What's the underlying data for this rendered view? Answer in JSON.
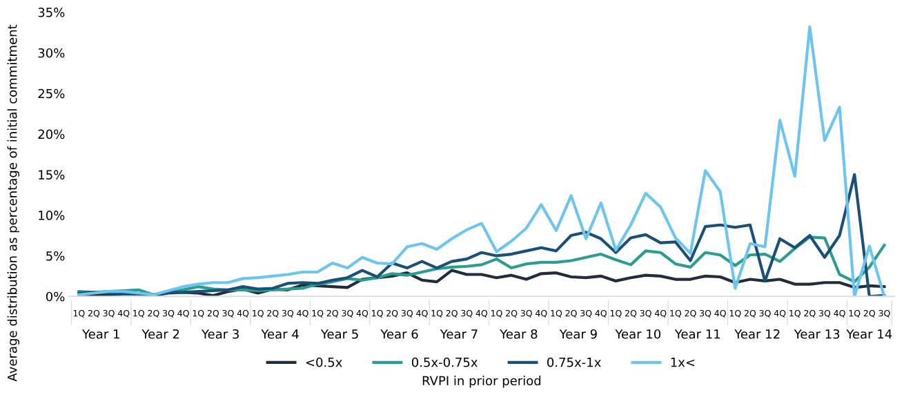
{
  "chart_data": {
    "type": "line",
    "ylabel": "Average distribution as percentage of initial commitment",
    "xlabel": "RVPI in prior period",
    "categories": [
      "1Q",
      "2Q",
      "3Q",
      "4Q",
      "1Q",
      "2Q",
      "3Q",
      "4Q",
      "1Q",
      "2Q",
      "3Q",
      "4Q",
      "1Q",
      "2Q",
      "3Q",
      "4Q",
      "1Q",
      "2Q",
      "3Q",
      "4Q",
      "1Q",
      "2Q",
      "3Q",
      "4Q",
      "1Q",
      "2Q",
      "3Q",
      "4Q",
      "1Q",
      "2Q",
      "3Q",
      "4Q",
      "1Q",
      "2Q",
      "3Q",
      "4Q",
      "1Q",
      "2Q",
      "3Q",
      "4Q",
      "1Q",
      "2Q",
      "3Q",
      "4Q",
      "1Q",
      "2Q",
      "3Q",
      "4Q",
      "1Q",
      "2Q",
      "3Q",
      "4Q",
      "1Q",
      "2Q",
      "3Q"
    ],
    "annotations": [
      "Year 1",
      "Year 2",
      "Year 3",
      "Year 4",
      "Year 5",
      "Year 6",
      "Year 7",
      "Year 8",
      "Year 9",
      "Year 10",
      "Year 11",
      "Year 12",
      "Year 13",
      "Year 14"
    ],
    "series": [
      {
        "name": "<0.5x",
        "color": "#1f2d3d",
        "values": [
          0.0,
          0.2,
          0.2,
          0.3,
          0.3,
          0.1,
          0.4,
          0.5,
          0.4,
          0.1,
          0.6,
          0.9,
          0.4,
          0.9,
          0.8,
          1.4,
          1.3,
          1.2,
          1.1,
          2.1,
          2.3,
          2.5,
          2.9,
          2.0,
          1.8,
          3.2,
          2.7,
          2.7,
          2.3,
          2.6,
          2.1,
          2.8,
          2.9,
          2.4,
          2.3,
          2.5,
          1.9,
          2.3,
          2.6,
          2.5,
          2.1,
          2.1,
          2.5,
          2.4,
          1.7,
          2.1,
          1.9,
          2.1,
          1.5,
          1.5,
          1.7,
          1.7,
          1.1,
          1.3,
          1.2
        ]
      },
      {
        "name": "0.5x-0.75x",
        "color": "#2a9d8f",
        "values": [
          0.6,
          0.5,
          0.6,
          0.7,
          0.8,
          0.2,
          0.5,
          0.8,
          1.2,
          0.9,
          0.8,
          0.8,
          0.7,
          0.8,
          0.9,
          1.0,
          1.5,
          1.8,
          2.2,
          2.0,
          2.3,
          2.8,
          2.6,
          3.0,
          3.4,
          3.6,
          3.7,
          3.9,
          4.6,
          3.5,
          4.0,
          4.2,
          4.2,
          4.4,
          4.8,
          5.2,
          4.5,
          3.9,
          5.6,
          5.4,
          4.0,
          3.6,
          5.4,
          5.1,
          3.8,
          5.1,
          5.2,
          4.3,
          5.9,
          7.3,
          7.2,
          2.7,
          1.8,
          3.6,
          6.3
        ]
      },
      {
        "name": "0.75x-1x",
        "color": "#1a4f7a",
        "values": [
          0.4,
          0.5,
          0.4,
          0.3,
          0.3,
          0.2,
          0.5,
          0.5,
          0.6,
          0.7,
          0.8,
          1.2,
          0.9,
          1.0,
          1.6,
          1.7,
          1.6,
          2.0,
          2.3,
          3.2,
          2.4,
          4.1,
          3.5,
          4.3,
          3.5,
          4.3,
          4.6,
          5.4,
          5.0,
          5.2,
          5.6,
          6.0,
          5.6,
          7.5,
          7.9,
          7.1,
          5.4,
          7.2,
          7.6,
          6.6,
          6.7,
          4.4,
          8.6,
          8.8,
          8.5,
          8.8,
          1.9,
          7.1,
          6.0,
          7.5,
          4.8,
          7.5,
          15.0,
          0.0,
          0.1
        ]
      },
      {
        "name": "1x<",
        "color": "#6cc5f0",
        "values": [
          0.2,
          0.4,
          0.6,
          0.6,
          0.4,
          0.2,
          0.7,
          1.2,
          1.5,
          1.7,
          1.7,
          2.2,
          2.3,
          2.5,
          2.7,
          3.0,
          3.0,
          4.1,
          3.5,
          4.8,
          4.1,
          4.0,
          6.1,
          6.5,
          5.8,
          7.1,
          8.2,
          9.0,
          5.5,
          6.8,
          8.4,
          11.3,
          8.1,
          12.4,
          7.1,
          11.5,
          5.7,
          8.8,
          12.7,
          11.0,
          7.2,
          5.3,
          15.5,
          12.9,
          1.0,
          6.5,
          6.1,
          21.7,
          14.8,
          33.2,
          19.2,
          23.3,
          0.0,
          6.2,
          0.0
        ]
      }
    ],
    "ylim": [
      0,
      35
    ],
    "yticks": [
      {
        "value": 0,
        "label": "0%"
      },
      {
        "value": 5,
        "label": "5%"
      },
      {
        "value": 10,
        "label": "10%"
      },
      {
        "value": 15,
        "label": "15%"
      },
      {
        "value": 20,
        "label": "20%"
      },
      {
        "value": 25,
        "label": "25%"
      },
      {
        "value": 30,
        "label": "30%"
      },
      {
        "value": 35,
        "label": "35%"
      }
    ],
    "legend": "bottom",
    "grid": false,
    "marker": "none",
    "line_style": "solid"
  }
}
